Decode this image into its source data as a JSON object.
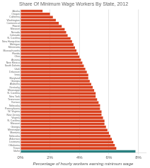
{
  "chart_data": {
    "type": "bar",
    "orientation": "horizontal",
    "title": "Share Of Minimum Wage Workers By State, 2012",
    "xlabel": "Percentage of hourly workers earning minimum wage",
    "categories": [
      "Alaska",
      "Oregon",
      "California",
      "Washington",
      "Connecticut",
      "Hawaii",
      "Missouri",
      "Nevada",
      "Colorado",
      "N. Carolina",
      "New Hampshire",
      "Michigan",
      "Minnesota",
      "Massachusetts",
      "Florida",
      "Ohio",
      "Arizona",
      "New Mexico",
      "South Dakota",
      "Utah",
      "Delaware",
      "Iowa",
      "Maryland",
      "Georgia",
      "Alabama",
      "Kentucky",
      "Mississippi",
      "N. Carolina",
      "New York",
      "Tennessee",
      "Kansas",
      "Nebraska",
      "Pennsylvania",
      "W. Virginia",
      "New Jersey",
      "Virginia",
      "N. Carolina",
      "Missouri",
      "Georgia",
      "Mississippi",
      "Montana",
      "Nebraska",
      "Arkansas",
      "Louisiana",
      "Oklahoma",
      "Texas",
      "Idaho"
    ],
    "values": [
      1.5,
      2.0,
      2.2,
      2.4,
      2.6,
      2.8,
      3.0,
      3.1,
      3.2,
      3.4,
      3.5,
      3.6,
      3.7,
      3.8,
      3.9,
      4.0,
      4.1,
      4.2,
      4.3,
      4.4,
      4.5,
      4.6,
      4.6,
      4.7,
      4.8,
      4.9,
      5.0,
      5.1,
      5.1,
      5.2,
      5.3,
      5.4,
      5.4,
      5.5,
      5.5,
      5.6,
      5.7,
      5.7,
      5.8,
      5.9,
      6.0,
      6.1,
      6.2,
      6.3,
      6.4,
      6.5,
      7.8
    ],
    "colors": [
      "#d9411e",
      "#d9411e",
      "#d9411e",
      "#d9411e",
      "#d9411e",
      "#d9411e",
      "#d9411e",
      "#d9411e",
      "#d9411e",
      "#d9411e",
      "#d9411e",
      "#d9411e",
      "#d9411e",
      "#d9411e",
      "#d9411e",
      "#d9411e",
      "#d9411e",
      "#d9411e",
      "#d9411e",
      "#d9411e",
      "#d9411e",
      "#d9411e",
      "#d9411e",
      "#d9411e",
      "#d9411e",
      "#d9411e",
      "#d9411e",
      "#d9411e",
      "#d9411e",
      "#d9411e",
      "#d9411e",
      "#d9411e",
      "#d9411e",
      "#d9411e",
      "#d9411e",
      "#d9411e",
      "#d9411e",
      "#d9411e",
      "#d9411e",
      "#d9411e",
      "#d9411e",
      "#d9411e",
      "#d9411e",
      "#d9411e",
      "#d9411e",
      "#d9411e",
      "#2a8080"
    ],
    "xlim": [
      0,
      8.5
    ],
    "xticks": [
      {
        "value": 0,
        "label": "0%"
      },
      {
        "value": 2,
        "label": "2%"
      },
      {
        "value": 4,
        "label": "4%"
      },
      {
        "value": 6,
        "label": "6%"
      },
      {
        "value": 8,
        "label": "8%"
      }
    ],
    "grid": true
  }
}
